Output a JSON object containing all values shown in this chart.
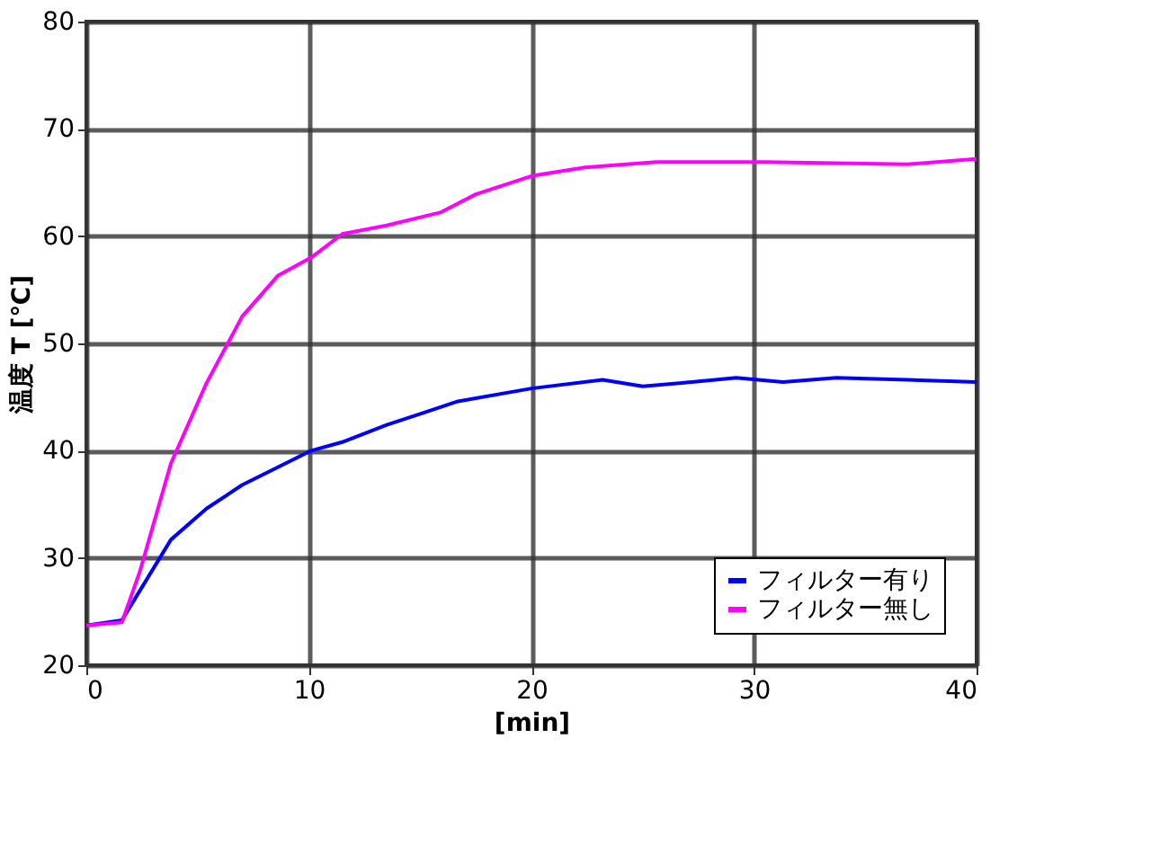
{
  "chart_data": {
    "type": "line",
    "xlabel": "[min]",
    "ylabel": "温度 T [℃]",
    "xlim": [
      0,
      40
    ],
    "ylim": [
      20,
      80
    ],
    "xticks": [
      0,
      10,
      20,
      30,
      40
    ],
    "yticks": [
      20,
      30,
      40,
      50,
      60,
      70,
      80
    ],
    "grid": true,
    "legend": "bottom right",
    "marker": "none",
    "line_style": "solid",
    "series": [
      {
        "name": "フィルター有り",
        "color": "#0000ff",
        "x": [
          0,
          1.6,
          3.8,
          5.4,
          7,
          10.1,
          11.5,
          13.5,
          15.1,
          16.7,
          20,
          23.2,
          25,
          27.2,
          29.2,
          31.3,
          33.7,
          36.9,
          40
        ],
        "values": [
          23.7,
          24.2,
          31.7,
          34.6,
          36.8,
          40,
          40.8,
          42.4,
          43.5,
          44.6,
          45.8,
          46.6,
          46,
          46.4,
          46.8,
          46.4,
          46.8,
          46.6,
          46.4
        ]
      },
      {
        "name": "フィルター無し",
        "color": "#ff00ff",
        "x": [
          0,
          1.6,
          2.4,
          3.8,
          5.4,
          7,
          8.6,
          10.1,
          11.5,
          13.5,
          15.9,
          17.5,
          20,
          22.4,
          25.6,
          30.5,
          36.9,
          40
        ],
        "values": [
          23.7,
          24,
          28.7,
          38.8,
          46.3,
          52.5,
          56.3,
          58,
          60.2,
          61,
          62.2,
          63.9,
          65.6,
          66.4,
          66.9,
          66.9,
          66.7,
          67.2
        ]
      }
    ]
  }
}
